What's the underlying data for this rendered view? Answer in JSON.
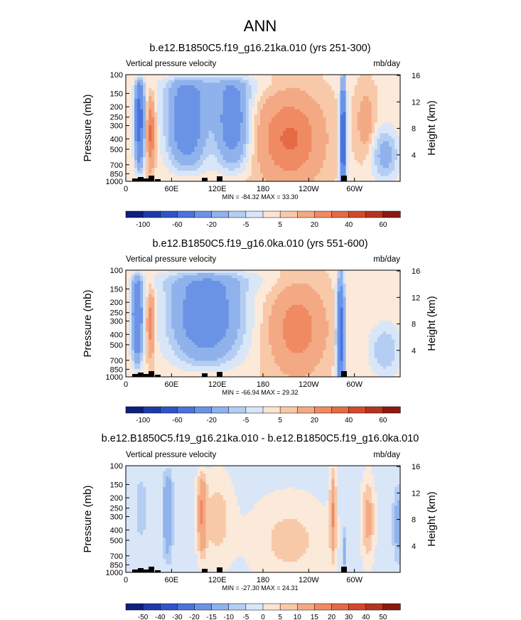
{
  "page_title": "ANN",
  "colors": {
    "positive": [
      "#fce4d2",
      "#f8c9a8",
      "#f4a985",
      "#ef8a62",
      "#e56a45",
      "#d4492c",
      "#b5331f",
      "#8a1a10"
    ],
    "negative": [
      "#d8e6f8",
      "#b4cdf2",
      "#8fb2ec",
      "#6a93e6",
      "#4a73dc",
      "#2e55c8",
      "#1f3aa8",
      "#0d1f80"
    ],
    "neutral": "#fbe9da"
  },
  "chart_data": [
    {
      "type": "heatmap",
      "title": "b.e12.B1850C5.f19_g16.21ka.010 (yrs 251-300)",
      "left_label": "Vertical pressure velocity",
      "right_label": "mb/day",
      "ylabel": "Pressure (mb)",
      "y2label": "Height (km)",
      "y_ticks": [
        "100",
        "150",
        "200",
        "250",
        "300",
        "400",
        "500",
        "700",
        "850",
        "1000"
      ],
      "y2_ticks": [
        "16",
        "12",
        "8",
        "4"
      ],
      "x_ticks": [
        "0",
        "60E",
        "120E",
        "180",
        "120W",
        "60W"
      ],
      "stats": "MIN = -84.32  MAX = 33.30",
      "colorbar_levels": [
        -120,
        -100,
        -80,
        -60,
        -40,
        -20,
        -10,
        -5,
        0,
        5,
        10,
        20,
        30,
        40,
        50,
        60,
        70
      ],
      "colorbar_labels": [
        "-100",
        "-60",
        "-20",
        "-5",
        "5",
        "20",
        "40",
        "60"
      ],
      "min": -84.32,
      "max": 33.3
    },
    {
      "type": "heatmap",
      "title": "b.e12.B1850C5.f19_g16.0ka.010 (yrs 551-600)",
      "left_label": "Vertical pressure velocity",
      "right_label": "mb/day",
      "ylabel": "Pressure (mb)",
      "y2label": "Height (km)",
      "y_ticks": [
        "100",
        "150",
        "200",
        "250",
        "300",
        "400",
        "500",
        "700",
        "850",
        "1000"
      ],
      "y2_ticks": [
        "16",
        "12",
        "8",
        "4"
      ],
      "x_ticks": [
        "0",
        "60E",
        "120E",
        "180",
        "120W",
        "60W"
      ],
      "stats": "MIN = -66.94  MAX = 29.32",
      "colorbar_levels": [
        -120,
        -100,
        -80,
        -60,
        -40,
        -20,
        -10,
        -5,
        0,
        5,
        10,
        20,
        30,
        40,
        50,
        60,
        70
      ],
      "colorbar_labels": [
        "-100",
        "-60",
        "-20",
        "-5",
        "5",
        "20",
        "40",
        "60"
      ],
      "min": -66.94,
      "max": 29.32
    },
    {
      "type": "heatmap",
      "title": "b.e12.B1850C5.f19_g16.21ka.010 - b.e12.B1850C5.f19_g16.0ka.010",
      "left_label": "Vertical pressure velocity",
      "right_label": "mb/day",
      "ylabel": "Pressure (mb)",
      "y2label": "Height (km)",
      "y_ticks": [
        "100",
        "150",
        "200",
        "250",
        "300",
        "400",
        "500",
        "700",
        "850",
        "1000"
      ],
      "y2_ticks": [
        "16",
        "12",
        "8",
        "4"
      ],
      "x_ticks": [
        "0",
        "60E",
        "120E",
        "180",
        "120W",
        "60W"
      ],
      "stats": "MIN = -27.30  MAX = 24.31",
      "colorbar_levels": [
        -60,
        -50,
        -40,
        -30,
        -20,
        -15,
        -10,
        -5,
        0,
        5,
        10,
        15,
        20,
        30,
        40,
        50,
        60
      ],
      "colorbar_labels": [
        "-50",
        "-40",
        "-30",
        "-20",
        "-15",
        "-10",
        "-5",
        "0",
        "5",
        "10",
        "15",
        "20",
        "30",
        "40",
        "50"
      ],
      "min": -27.3,
      "max": 24.31
    }
  ]
}
